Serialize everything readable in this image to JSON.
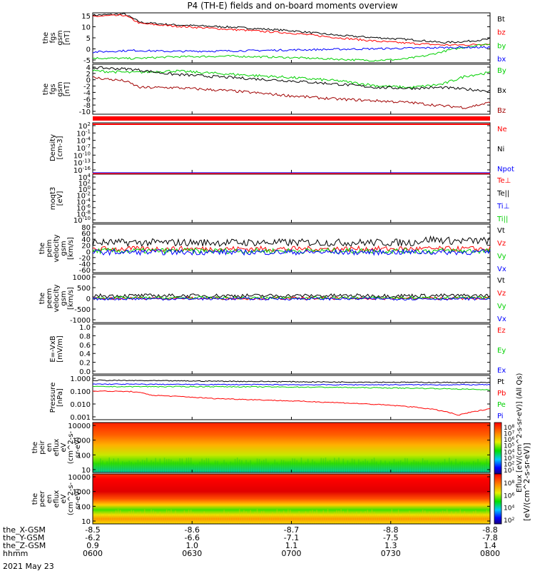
{
  "title": "P4 (TH-E) fields and on-board moments overview",
  "date": "2021 May 23",
  "time_ticks": [
    "0600",
    "0630",
    "0700",
    "0730",
    "0800"
  ],
  "ephemeris": [
    {
      "label": "the_X-GSM",
      "values": [
        "-8.5",
        "-8.6",
        "-8.7",
        "-8.8",
        "-8.8"
      ]
    },
    {
      "label": "the_Y-GSM",
      "values": [
        "-6.2",
        "-6.6",
        "-7.1",
        "-7.5",
        "-7.8"
      ]
    },
    {
      "label": "the_Z-GSM",
      "values": [
        "0.9",
        "1.0",
        "1.1",
        "1.3",
        "1.4"
      ]
    },
    {
      "label": "hhmm",
      "values": [
        "",
        "",
        "",
        "",
        ""
      ]
    }
  ],
  "colorbar": {
    "label": "[eV/(cm^2-s-sr-eV)]",
    "overlap_label": "Eflux [eV/(cm^2-s-sr-eV)] (All Qs)",
    "ticks_top": [
      "10^8",
      "10^7",
      "10^6",
      "10^5",
      "10^4",
      "10^3",
      "10^2",
      "10^1"
    ],
    "ticks_bottom": [
      "10^8",
      "10^6",
      "10^4",
      "10^2"
    ]
  },
  "colors": {
    "black": "#000000",
    "red": "#ff0000",
    "green": "#00d000",
    "blue": "#0000ff",
    "darkred": "#a00000"
  },
  "chart_data": [
    {
      "type": "line",
      "ylabel": [
        "the",
        "fgs",
        "gsm",
        "[nT]"
      ],
      "yticks": [
        "15",
        "10",
        "5",
        "0",
        "-5"
      ],
      "ylim": [
        -6,
        15
      ],
      "legend": [
        {
          "name": "Bt",
          "color": "#000000"
        },
        {
          "name": "bz",
          "color": "#ff0000"
        },
        {
          "name": "by",
          "color": "#00d000"
        },
        {
          "name": "bx",
          "color": "#0000ff"
        }
      ],
      "series": [
        {
          "name": "Bt",
          "color": "#000000",
          "x": [
            0,
            0.08,
            0.12,
            0.2,
            0.35,
            0.5,
            0.62,
            0.72,
            0.82,
            0.88,
            0.94,
            1.0
          ],
          "y": [
            14,
            14.5,
            11,
            10,
            9,
            7.5,
            5.5,
            4.5,
            3.5,
            2.5,
            3,
            4
          ]
        },
        {
          "name": "bz",
          "color": "#ff0000",
          "x": [
            0,
            0.08,
            0.12,
            0.2,
            0.35,
            0.5,
            0.62,
            0.72,
            0.82,
            0.88,
            0.94,
            1.0
          ],
          "y": [
            13.5,
            14,
            10.5,
            9.5,
            8,
            6.5,
            4.5,
            3,
            2,
            1.5,
            1.5,
            2
          ]
        },
        {
          "name": "by",
          "color": "#00d000",
          "x": [
            0,
            0.1,
            0.2,
            0.35,
            0.5,
            0.62,
            0.7,
            0.78,
            0.84,
            0.9,
            0.95,
            1.0
          ],
          "y": [
            -4,
            -4.2,
            -3.5,
            -3.2,
            -3.8,
            -4.5,
            -5,
            -4.5,
            -3,
            -0.5,
            1,
            2
          ]
        },
        {
          "name": "bx",
          "color": "#0000ff",
          "x": [
            0,
            0.1,
            0.2,
            0.35,
            0.5,
            0.62,
            0.75,
            0.85,
            0.92,
            1.0
          ],
          "y": [
            -1.5,
            -0.8,
            -1.2,
            -1.0,
            -0.6,
            -0.3,
            0,
            0.3,
            0.5,
            0.5
          ]
        }
      ]
    },
    {
      "type": "line",
      "ylabel": [
        "the",
        "fgs",
        "gsm",
        "[nT]"
      ],
      "yticks": [
        "4",
        "2",
        "0",
        "-2",
        "-4",
        "-6",
        "-8",
        "-10"
      ],
      "ylim": [
        -11,
        4
      ],
      "legend": [
        {
          "name": "By",
          "color": "#00d000"
        },
        {
          "name": "Bx",
          "color": "#000000"
        },
        {
          "name": "Bz",
          "color": "#a00000"
        }
      ],
      "series": [
        {
          "name": "By",
          "color": "#00d000",
          "x": [
            0,
            0.1,
            0.2,
            0.35,
            0.5,
            0.62,
            0.72,
            0.8,
            0.88,
            0.94,
            1.0
          ],
          "y": [
            2,
            1.5,
            2,
            1,
            0,
            -1,
            -2.5,
            -3,
            -2,
            0.5,
            1.5
          ]
        },
        {
          "name": "Bx",
          "color": "#000000",
          "x": [
            0,
            0.1,
            0.2,
            0.35,
            0.5,
            0.62,
            0.72,
            0.8,
            0.88,
            0.94,
            1.0
          ],
          "y": [
            3,
            2.5,
            1,
            0,
            -1,
            -2,
            -3,
            -3.2,
            -3,
            -3.5,
            -4
          ]
        },
        {
          "name": "Bz",
          "color": "#a00000",
          "x": [
            0,
            0.08,
            0.12,
            0.2,
            0.35,
            0.5,
            0.62,
            0.72,
            0.8,
            0.88,
            0.94,
            1.0
          ],
          "y": [
            0,
            -1,
            -3,
            -3,
            -4,
            -5.5,
            -6.5,
            -7,
            -7.5,
            -8.5,
            -9,
            -7.5
          ]
        }
      ]
    },
    {
      "type": "line",
      "ylabel": [
        "Density",
        "[cm-3]"
      ],
      "yticks": [
        "10^2",
        "10^-1",
        "10^-4",
        "10^-7",
        "10^-10",
        "10^-13",
        "10^-16"
      ],
      "legend": [
        {
          "name": "Ne",
          "color": "#ff0000"
        },
        {
          "name": "Ni",
          "color": "#000000"
        },
        {
          "name": "Npot",
          "color": "#0000ff"
        }
      ],
      "series": []
    },
    {
      "type": "line",
      "ylabel": [
        "moqt3",
        "[eV]"
      ],
      "yticks": [
        "10^4",
        "10^2",
        "10^0",
        "10^-2",
        "10^-4",
        "10^-6",
        "10^-8",
        "10^-10"
      ],
      "legend": [
        {
          "name": "Te⊥",
          "color": "#ff0000"
        },
        {
          "name": "Te||",
          "color": "#000000"
        },
        {
          "name": "Ti⊥",
          "color": "#0000ff"
        },
        {
          "name": "Ti||",
          "color": "#00d000"
        }
      ],
      "series": []
    },
    {
      "type": "line",
      "ylabel": [
        "the",
        "peim",
        "velocity",
        "gsm",
        "[km/s]"
      ],
      "yticks": [
        "80",
        "60",
        "40",
        "20",
        "0",
        "-20",
        "-40",
        "-60"
      ],
      "ylim": [
        -65,
        80
      ],
      "legend": [
        {
          "name": "Vt",
          "color": "#000000"
        },
        {
          "name": "Vz",
          "color": "#ff0000"
        },
        {
          "name": "Vy",
          "color": "#00d000"
        },
        {
          "name": "Vx",
          "color": "#0000ff"
        }
      ],
      "series": [
        {
          "name": "Vt",
          "color": "#000000",
          "x": [
            0,
            0.2,
            0.5,
            0.8,
            0.85,
            0.9,
            1.0
          ],
          "y": [
            25,
            25,
            25,
            25,
            35,
            30,
            30
          ]
        },
        {
          "name": "Vz",
          "color": "#ff0000",
          "x": [
            0,
            0.5,
            1.0
          ],
          "y": [
            6,
            6,
            6
          ]
        },
        {
          "name": "Vy",
          "color": "#00d000",
          "x": [
            0,
            0.5,
            1.0
          ],
          "y": [
            0,
            0,
            0
          ]
        },
        {
          "name": "Vx",
          "color": "#0000ff",
          "x": [
            0,
            0.5,
            1.0
          ],
          "y": [
            -4,
            -4,
            -4
          ]
        }
      ]
    },
    {
      "type": "line",
      "ylabel": [
        "the",
        "peem",
        "velocity",
        "gsm",
        "[km/s]"
      ],
      "yticks": [
        "1000",
        "500",
        "0",
        "-500",
        "-1000"
      ],
      "ylim": [
        -1100,
        1100
      ],
      "legend": [
        {
          "name": "Vt",
          "color": "#000000"
        },
        {
          "name": "Vz",
          "color": "#ff0000"
        },
        {
          "name": "Vy",
          "color": "#00d000"
        },
        {
          "name": "Vx",
          "color": "#0000ff"
        }
      ],
      "series": [
        {
          "name": "Vt",
          "color": "#000000",
          "x": [
            0,
            0.5,
            1.0
          ],
          "y": [
            120,
            120,
            120
          ]
        },
        {
          "name": "Vz",
          "color": "#ff0000",
          "x": [
            0,
            0.5,
            1.0
          ],
          "y": [
            0,
            0,
            0
          ]
        },
        {
          "name": "Vy",
          "color": "#00d000",
          "x": [
            0,
            0.5,
            1.0
          ],
          "y": [
            20,
            20,
            20
          ]
        },
        {
          "name": "Vx",
          "color": "#0000ff",
          "x": [
            0,
            0.5,
            1.0
          ],
          "y": [
            -20,
            -20,
            -20
          ]
        }
      ]
    },
    {
      "type": "line",
      "ylabel": [
        "E=-VxB",
        "[mV/m]"
      ],
      "yticks": [
        "1.0",
        "0.8",
        "0.6",
        "0.4",
        "0.2",
        "0.0"
      ],
      "ylim": [
        0,
        1
      ],
      "legend": [
        {
          "name": "Ez",
          "color": "#ff0000"
        },
        {
          "name": "Ey",
          "color": "#00d000"
        },
        {
          "name": "Ex",
          "color": "#0000ff"
        }
      ],
      "series": []
    },
    {
      "type": "line",
      "ylabel": [
        "Pressure",
        "[nPa]"
      ],
      "yticks": [
        "1.000",
        "0.100",
        "0.010",
        "0.001"
      ],
      "ylim": [
        0.001,
        1.2
      ],
      "log": true,
      "legend": [
        {
          "name": "Pt",
          "color": "#000000"
        },
        {
          "name": "Pb",
          "color": "#ff0000"
        },
        {
          "name": "Pe",
          "color": "#00d000"
        },
        {
          "name": "Pi",
          "color": "#0000ff"
        }
      ],
      "series": [
        {
          "name": "Pt",
          "color": "#000000",
          "x": [
            0,
            0.3,
            0.6,
            1.0
          ],
          "y": [
            0.55,
            0.48,
            0.42,
            0.38
          ]
        },
        {
          "name": "Pi",
          "color": "#0000ff",
          "x": [
            0,
            0.3,
            0.6,
            1.0
          ],
          "y": [
            0.3,
            0.28,
            0.27,
            0.27
          ]
        },
        {
          "name": "Pe",
          "color": "#00d000",
          "x": [
            0,
            0.3,
            0.6,
            0.85,
            1.0
          ],
          "y": [
            0.2,
            0.2,
            0.18,
            0.15,
            0.12
          ]
        },
        {
          "name": "Pb",
          "color": "#ff0000",
          "x": [
            0,
            0.1,
            0.15,
            0.3,
            0.5,
            0.7,
            0.8,
            0.88,
            0.92,
            0.97,
            1.0
          ],
          "y": [
            0.1,
            0.09,
            0.05,
            0.03,
            0.02,
            0.012,
            0.008,
            0.004,
            0.002,
            0.004,
            0.006
          ]
        }
      ]
    },
    {
      "type": "heatmap",
      "ylabel": [
        "the",
        "peir",
        "en",
        "eflux",
        "eV",
        "(cm^2-s-",
        "sr-eV)"
      ],
      "yticks": [
        "10000",
        "1000",
        "100",
        "10"
      ]
    },
    {
      "type": "heatmap",
      "ylabel": [
        "the",
        "peer",
        "en",
        "eflux",
        "eV",
        "(cm^2-s-",
        "sr-eV)"
      ],
      "yticks": [
        "10000",
        "1000",
        "100",
        "10"
      ]
    }
  ]
}
